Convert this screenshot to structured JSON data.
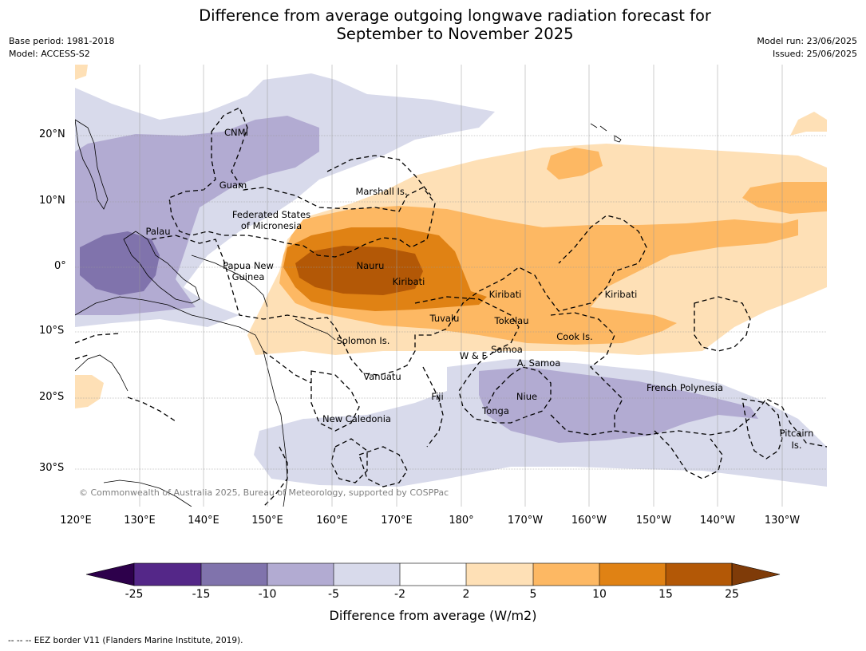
{
  "title_line1": "Difference from average outgoing longwave radiation forecast for",
  "title_line2": "September to November 2025",
  "base_period": "Base period: 1981-2018",
  "model": "Model: ACCESS-S2",
  "model_run": "Model run: 23/06/2025",
  "issued": "Issued: 25/06/2025",
  "copyright": "© Commonwealth of Australia 2025, Bureau of Meteorology, supported by COSPPac",
  "footer": "-- -- -- EEZ border V11 (Flanders Marine Institute, 2019).",
  "lat_ticks": [
    "20°N",
    "10°N",
    "0°",
    "10°S",
    "20°S",
    "30°S"
  ],
  "lon_ticks": [
    "120°E",
    "130°E",
    "140°E",
    "150°E",
    "160°E",
    "170°E",
    "180°",
    "170°W",
    "160°W",
    "150°W",
    "140°W",
    "130°W"
  ],
  "place_labels": {
    "cnmi": "CNMI",
    "guam": "Guam",
    "marshall": "Marshall Is.",
    "fsm1": "Federated States",
    "fsm2": "of Micronesia",
    "palau": "Palau",
    "png1": "Papua New",
    "png2": "Guinea",
    "nauru": "Nauru",
    "kiribati_w": "Kiribati",
    "kiribati_c": "Kiribati",
    "kiribati_e": "Kiribati",
    "tuvalu": "Tuvalu",
    "tokelau": "Tokelau",
    "cook": "Cook Is.",
    "solomon": "Solomon Is.",
    "samoa": "Samoa",
    "wf": "W & F",
    "asamoa": "A. Samoa",
    "vanuatu": "Vanuatu",
    "fiji": "Fiji",
    "niue": "Niue",
    "tonga": "Tonga",
    "newcal": "New Caledonia",
    "frpoly": "French Polynesia",
    "pitcairn1": "Pitcairn",
    "pitcairn2": "Is."
  },
  "colorbar": {
    "title": "Difference from average (W/m2)",
    "labels": [
      "-25",
      "-15",
      "-10",
      "-5",
      "-2",
      "2",
      "5",
      "10",
      "15",
      "25"
    ],
    "colors": [
      "#2d004b",
      "#542788",
      "#8073ac",
      "#b2abd2",
      "#d8daeb",
      "#ffffff",
      "#fee0b6",
      "#fdb863",
      "#e08214",
      "#b35806",
      "#7f3b08"
    ]
  }
}
